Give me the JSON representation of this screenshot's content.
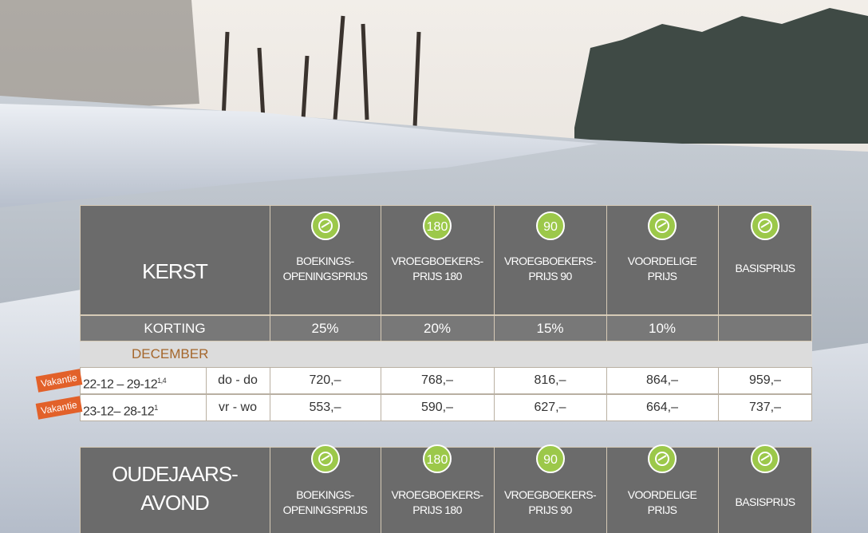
{
  "tables": [
    {
      "title_lines": [
        "KERST"
      ],
      "columns": [
        {
          "label": [
            "BOEKINGS-",
            "OPENINGSPRIJS"
          ]
        },
        {
          "icon_text": "180",
          "label": [
            "VROEGBOEKERS-",
            "PRIJS 180"
          ]
        },
        {
          "icon_text": "90",
          "label": [
            "VROEGBOEKERS-",
            "PRIJS 90"
          ]
        },
        {
          "label": [
            "VOORDELIGE",
            "PRIJS"
          ]
        },
        {
          "label": [
            "BASISPRIJS"
          ]
        }
      ],
      "discount_label": "KORTING",
      "discounts": [
        "25%",
        "20%",
        "15%",
        "10%"
      ],
      "month": "DECEMBER",
      "rows": [
        {
          "tag": "Vakantie",
          "period": "22-12 – 29-12",
          "note": "1,4",
          "days": "do - do",
          "prices": [
            "720,–",
            "768,–",
            "816,–",
            "864,–",
            "959,–"
          ]
        },
        {
          "tag": "Vakantie",
          "period": "23-12– 28-12",
          "note": "1",
          "days": "vr - wo",
          "prices": [
            "553,–",
            "590,–",
            "627,–",
            "664,–",
            "737,–"
          ]
        }
      ]
    },
    {
      "title_lines": [
        "OUDEJAARS-",
        "AVOND"
      ],
      "columns": [
        {
          "label": [
            "BOEKINGS-",
            "OPENINGSPRIJS"
          ]
        },
        {
          "icon_text": "180",
          "label": [
            "VROEGBOEKERS-",
            "PRIJS 180"
          ]
        },
        {
          "icon_text": "90",
          "label": [
            "VROEGBOEKERS-",
            "PRIJS 90"
          ]
        },
        {
          "label": [
            "VOORDELIGE",
            "PRIJS"
          ]
        },
        {
          "label": [
            "BASISPRIJS"
          ]
        }
      ]
    }
  ]
}
